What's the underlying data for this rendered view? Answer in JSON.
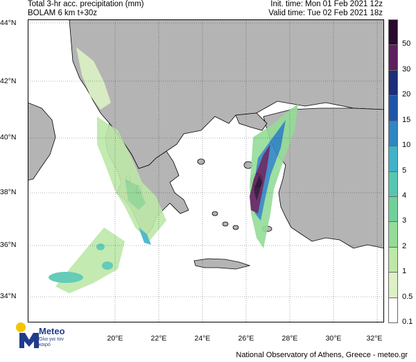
{
  "header": {
    "left_line1": "Total 3-hr acc. precipitation (mm)",
    "left_line2": "BOLAM 6 km t+30z",
    "right_line1": "Init. time: Mon 01 Feb 2021 12z",
    "right_line2": "Valid time: Tue 02 Feb 2021 18z"
  },
  "lat_labels": [
    "44°N",
    "42°N",
    "40°N",
    "38°N",
    "36°N",
    "34°N"
  ],
  "lon_labels": [
    "20°E",
    "22°E",
    "24°E",
    "26°E",
    "28°E",
    "30°E",
    "32°E"
  ],
  "colorbar": {
    "labels": [
      "50",
      "30",
      "20",
      "15",
      "10",
      "5",
      "4",
      "3",
      "2",
      "1",
      "0.5",
      "0.1"
    ],
    "colors": [
      "#2a0a2e",
      "#5d1f5e",
      "#1c2d7a",
      "#1f55a8",
      "#2f86c2",
      "#3fb3c9",
      "#55c7b0",
      "#6fd19a",
      "#94dc98",
      "#bde8a8",
      "#dcf2c4",
      "#ffffff"
    ]
  },
  "logo": {
    "name": "Meteo",
    "tagline": "Όλα για τον καιρό"
  },
  "footer": "National Observatory of Athens, Greece - meteo.gr",
  "colors": {
    "sea": "#ffffff",
    "land": "#b4b4b4",
    "border": "#000000"
  }
}
